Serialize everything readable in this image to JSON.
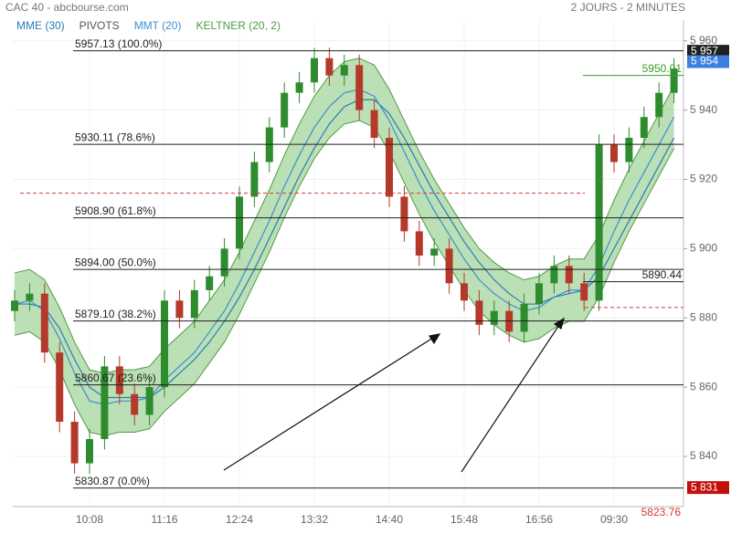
{
  "header": {
    "title": "CAC 40 - abcbourse.com",
    "period": "2 JOURS - 2 MINUTES"
  },
  "chart_data": {
    "type": "candlestick",
    "categories": [
      null,
      null,
      null,
      null,
      null,
      "10:08",
      null,
      null,
      null,
      null,
      "11:16",
      null,
      null,
      null,
      null,
      "12:24",
      null,
      null,
      null,
      null,
      "13:32",
      null,
      null,
      null,
      null,
      "14:40",
      null,
      null,
      null,
      null,
      "15:48",
      null,
      null,
      null,
      null,
      "16:56",
      null,
      null,
      null,
      null,
      "09:30",
      null,
      null,
      null,
      null
    ],
    "open": [
      5882,
      5885,
      5887,
      5870,
      5850,
      5838,
      5845,
      5866,
      5858,
      5852,
      5860,
      5885,
      5880,
      5888,
      5892,
      5900,
      5915,
      5925,
      5935,
      5945,
      5948,
      5955,
      5950,
      5953,
      5940,
      5932,
      5915,
      5905,
      5898,
      5900,
      5890,
      5885,
      5878,
      5882,
      5876,
      5884,
      5890,
      5895,
      5890,
      5885,
      5930,
      5925,
      5932,
      5938,
      5945
    ],
    "high": [
      5888,
      5890,
      5890,
      5873,
      5853,
      5848,
      5869,
      5869,
      5861,
      5863,
      5888,
      5888,
      5891,
      5895,
      5903,
      5918,
      5928,
      5938,
      5948,
      5951,
      5958,
      5958,
      5956,
      5956,
      5943,
      5935,
      5918,
      5908,
      5903,
      5903,
      5893,
      5888,
      5885,
      5885,
      5887,
      5893,
      5898,
      5898,
      5893,
      5933,
      5933,
      5935,
      5941,
      5948,
      5955
    ],
    "low": [
      5879,
      5882,
      5867,
      5847,
      5835,
      5835,
      5842,
      5855,
      5849,
      5849,
      5857,
      5877,
      5877,
      5885,
      5889,
      5897,
      5912,
      5922,
      5932,
      5942,
      5945,
      5947,
      5947,
      5937,
      5929,
      5912,
      5902,
      5895,
      5895,
      5887,
      5882,
      5875,
      5875,
      5873,
      5873,
      5881,
      5887,
      5887,
      5882,
      5882,
      5922,
      5922,
      5929,
      5935,
      5942
    ],
    "close": [
      5885,
      5887,
      5870,
      5850,
      5838,
      5845,
      5866,
      5858,
      5852,
      5860,
      5885,
      5880,
      5888,
      5892,
      5900,
      5915,
      5925,
      5935,
      5945,
      5948,
      5955,
      5950,
      5953,
      5940,
      5932,
      5915,
      5905,
      5898,
      5900,
      5890,
      5885,
      5878,
      5882,
      5876,
      5884,
      5890,
      5895,
      5890,
      5885,
      5930,
      5925,
      5932,
      5938,
      5945,
      5952
    ],
    "up_color": "#2e8b2e",
    "down_color": "#b5392b",
    "bands": {
      "name": "KELTNER (20, 2)",
      "color": "#4f9a45",
      "fill": "#9fd395",
      "upper": [
        5893,
        5894,
        5891,
        5883,
        5873,
        5865,
        5864,
        5865,
        5865,
        5866,
        5871,
        5875,
        5879,
        5885,
        5891,
        5899,
        5908,
        5917,
        5927,
        5936,
        5944,
        5950,
        5954,
        5955,
        5953,
        5946,
        5937,
        5928,
        5920,
        5913,
        5906,
        5900,
        5896,
        5893,
        5891,
        5892,
        5895,
        5897,
        5897,
        5904,
        5914,
        5923,
        5931,
        5939,
        5947
      ],
      "lower": [
        5875,
        5876,
        5873,
        5865,
        5855,
        5847,
        5846,
        5847,
        5847,
        5848,
        5853,
        5857,
        5861,
        5867,
        5873,
        5881,
        5890,
        5899,
        5909,
        5918,
        5926,
        5932,
        5936,
        5937,
        5935,
        5928,
        5919,
        5910,
        5902,
        5895,
        5888,
        5882,
        5878,
        5875,
        5873,
        5874,
        5877,
        5879,
        5879,
        5886,
        5896,
        5905,
        5913,
        5921,
        5929
      ]
    },
    "series": [
      {
        "name": "MME (30)",
        "color": "#2a7ab8",
        "values": [
          5884,
          5884,
          5883,
          5877,
          5868,
          5860,
          5857,
          5857,
          5857,
          5857,
          5860,
          5864,
          5868,
          5873,
          5879,
          5886,
          5894,
          5903,
          5912,
          5921,
          5929,
          5936,
          5941,
          5943,
          5943,
          5939,
          5932,
          5924,
          5916,
          5909,
          5902,
          5896,
          5891,
          5887,
          5884,
          5884,
          5886,
          5887,
          5888,
          5892,
          5900,
          5908,
          5916,
          5924,
          5932
        ]
      },
      {
        "name": "MMT (20)",
        "color": "#3b8fd0",
        "values": [
          5884,
          5885,
          5882,
          5874,
          5864,
          5856,
          5855,
          5856,
          5856,
          5857,
          5862,
          5866,
          5870,
          5876,
          5882,
          5890,
          5899,
          5908,
          5918,
          5927,
          5935,
          5941,
          5945,
          5946,
          5944,
          5937,
          5928,
          5919,
          5911,
          5904,
          5897,
          5891,
          5887,
          5884,
          5882,
          5883,
          5886,
          5888,
          5888,
          5895,
          5905,
          5914,
          5922,
          5930,
          5938
        ]
      }
    ],
    "pivots": {
      "name": "PIVOTS",
      "color": "#d33a3a",
      "levels": [
        5916,
        5883
      ],
      "offscale": 5823.76
    },
    "fibonacci": [
      {
        "value": 5957.13,
        "label": "5957.13 (100.0%)"
      },
      {
        "value": 5930.11,
        "label": "5930.11 (78.6%)"
      },
      {
        "value": 5908.9,
        "label": "5908.90 (61.8%)"
      },
      {
        "value": 5894.0,
        "label": "5894.00 (50.0%)"
      },
      {
        "value": 5879.1,
        "label": "5879.10 (38.2%)"
      },
      {
        "value": 5860.67,
        "label": "5860.67 (23.6%)"
      },
      {
        "value": 5830.87,
        "label": "5830.87 (0.0%)"
      }
    ],
    "levels": [
      {
        "value": 5950.01,
        "color": "#3a9a2a"
      },
      {
        "value": 5890.44,
        "color": "#222222"
      }
    ],
    "price_tags": [
      {
        "value": 5957,
        "label": "5 957",
        "color": "#1f1f1f"
      },
      {
        "value": 5954,
        "label": "5 954",
        "color": "#3d7fe0"
      },
      {
        "value": 5831,
        "label": "5 831",
        "color": "#c40f0f"
      }
    ],
    "ylim": [
      5825.5,
      5966
    ],
    "yticks": [
      {
        "value": 5840,
        "label": "5 840"
      },
      {
        "value": 5860,
        "label": "5 860"
      },
      {
        "value": 5880,
        "label": "5 880"
      },
      {
        "value": 5900,
        "label": "5 900"
      },
      {
        "value": 5920,
        "label": "5 920"
      },
      {
        "value": 5940,
        "label": "5 940"
      },
      {
        "value": 5960,
        "label": "5 960"
      }
    ],
    "grid": true
  }
}
